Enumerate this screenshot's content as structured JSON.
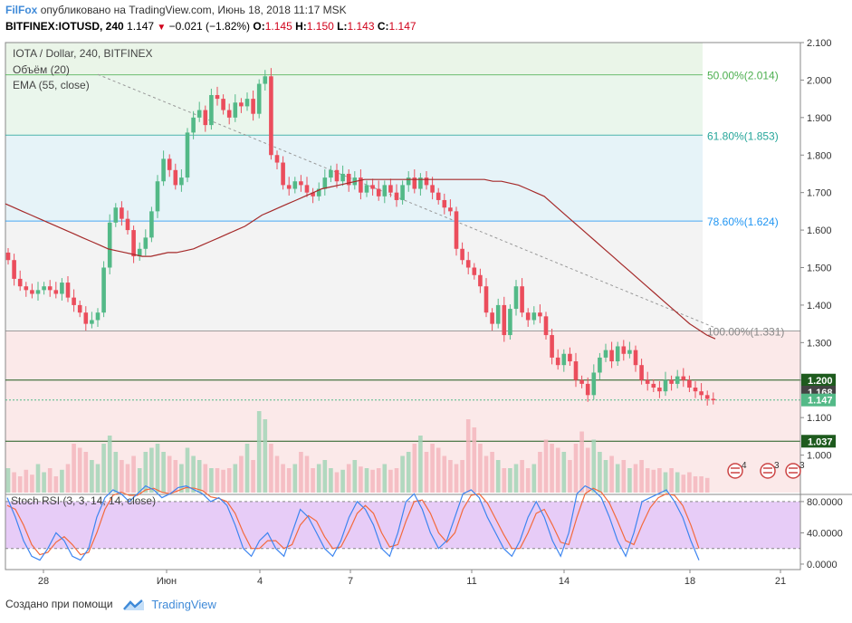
{
  "header": {
    "brand": "FilFox",
    "publish_text": "опубликовано на TradingView.com, Июнь 18, 2018 11:17 MSK",
    "symbol": "BITFINEX:IOTUSD, 240",
    "last": "1.147",
    "change": "−0.021 (−1.82%)",
    "o_label": "O:",
    "o": "1.145",
    "h_label": "H:",
    "h": "1.150",
    "l_label": "L:",
    "l": "1.143",
    "c_label": "C:",
    "c": "1.147"
  },
  "legend": {
    "title": "IOTA / Dollar, 240, BITFINEX",
    "volume": "Объём (20)",
    "ema": "EMA (55, close)",
    "rsi": "Stoch RSI (3, 3, 14, 14, close)"
  },
  "footer": {
    "created_with": "Создано при помощи",
    "brand": "TradingView"
  },
  "colors": {
    "up": "#53b987",
    "down": "#eb4d5c",
    "ema": "#a52a2a",
    "k": "#3d85f0",
    "d": "#f36a3d",
    "brand": "#3f8ad8"
  },
  "chart_data": {
    "type": "candlestick",
    "price_axis": {
      "min": 0.9,
      "max": 2.1,
      "ticks": [
        "2.100",
        "2.000",
        "1.900",
        "1.800",
        "1.700",
        "1.600",
        "1.500",
        "1.400",
        "1.300",
        "1.200",
        "1.100",
        "1.000"
      ]
    },
    "x_ticks": [
      "28",
      "Июн",
      "4",
      "7",
      "11",
      "14",
      "18",
      "21"
    ],
    "fib_levels": [
      {
        "label": "50.00%(2.014)",
        "value": 2.014,
        "color": "#4caf50"
      },
      {
        "label": "61.80%(1.853)",
        "value": 1.853,
        "color": "#26a69a"
      },
      {
        "label": "78.60%(1.624)",
        "value": 1.624,
        "color": "#2196f3"
      },
      {
        "label": "100.00%(1.331)",
        "value": 1.331,
        "color": "#888888"
      }
    ],
    "price_tags": [
      {
        "label": "1.200",
        "value": 1.2,
        "bg": "#1e5b1e"
      },
      {
        "label": "1.168",
        "value": 1.168,
        "bg": "#444444"
      },
      {
        "label": "1.147",
        "value": 1.147,
        "bg": "#53b987"
      },
      {
        "label": "1.037",
        "value": 1.037,
        "bg": "#1e5b1e"
      }
    ],
    "horizontal_lines": [
      1.2,
      1.037
    ],
    "closes": [
      1.52,
      1.47,
      1.45,
      1.44,
      1.43,
      1.44,
      1.45,
      1.44,
      1.43,
      1.46,
      1.42,
      1.4,
      1.38,
      1.35,
      1.36,
      1.38,
      1.5,
      1.62,
      1.66,
      1.63,
      1.6,
      1.53,
      1.55,
      1.58,
      1.65,
      1.73,
      1.79,
      1.76,
      1.72,
      1.74,
      1.86,
      1.9,
      1.92,
      1.88,
      1.96,
      1.95,
      1.92,
      1.9,
      1.94,
      1.93,
      1.95,
      1.91,
      1.99,
      2.01,
      1.8,
      1.78,
      1.72,
      1.71,
      1.73,
      1.72,
      1.7,
      1.69,
      1.71,
      1.74,
      1.76,
      1.73,
      1.75,
      1.72,
      1.74,
      1.7,
      1.72,
      1.71,
      1.69,
      1.72,
      1.7,
      1.68,
      1.72,
      1.74,
      1.71,
      1.74,
      1.72,
      1.7,
      1.68,
      1.66,
      1.65,
      1.55,
      1.52,
      1.5,
      1.48,
      1.45,
      1.38,
      1.35,
      1.4,
      1.32,
      1.39,
      1.45,
      1.38,
      1.36,
      1.38,
      1.37,
      1.32,
      1.26,
      1.24,
      1.27,
      1.25,
      1.2,
      1.19,
      1.16,
      1.22,
      1.26,
      1.28,
      1.25,
      1.29,
      1.27,
      1.28,
      1.24,
      1.2,
      1.19,
      1.18,
      1.17,
      1.2,
      1.19,
      1.21,
      1.2,
      1.18,
      1.17,
      1.16,
      1.15,
      1.147
    ],
    "ema55": [
      1.67,
      1.66,
      1.65,
      1.64,
      1.63,
      1.62,
      1.61,
      1.6,
      1.59,
      1.58,
      1.57,
      1.56,
      1.55,
      1.545,
      1.54,
      1.535,
      1.53,
      1.53,
      1.535,
      1.54,
      1.54,
      1.545,
      1.55,
      1.56,
      1.57,
      1.58,
      1.59,
      1.6,
      1.61,
      1.625,
      1.64,
      1.65,
      1.66,
      1.67,
      1.68,
      1.69,
      1.7,
      1.71,
      1.715,
      1.72,
      1.725,
      1.73,
      1.735,
      1.735,
      1.735,
      1.735,
      1.735,
      1.735,
      1.735,
      1.735,
      1.735,
      1.735,
      1.735,
      1.735,
      1.735,
      1.735,
      1.735,
      1.73,
      1.73,
      1.725,
      1.72,
      1.71,
      1.7,
      1.69,
      1.67,
      1.65,
      1.63,
      1.61,
      1.59,
      1.57,
      1.55,
      1.53,
      1.51,
      1.49,
      1.47,
      1.45,
      1.43,
      1.41,
      1.39,
      1.37,
      1.35,
      1.335,
      1.32,
      1.31
    ],
    "volume": [
      0.3,
      0.25,
      0.2,
      0.28,
      0.22,
      0.35,
      0.25,
      0.3,
      0.2,
      0.28,
      0.35,
      0.6,
      0.55,
      0.5,
      0.4,
      0.35,
      0.6,
      0.7,
      0.5,
      0.4,
      0.35,
      0.45,
      0.3,
      0.5,
      0.55,
      0.6,
      0.5,
      0.45,
      0.4,
      0.35,
      0.55,
      0.45,
      0.4,
      0.35,
      0.3,
      0.3,
      0.28,
      0.3,
      0.35,
      0.45,
      0.6,
      0.4,
      1.0,
      0.9,
      0.6,
      0.45,
      0.35,
      0.3,
      0.35,
      0.5,
      0.45,
      0.3,
      0.35,
      0.4,
      0.3,
      0.25,
      0.28,
      0.35,
      0.4,
      0.32,
      0.3,
      0.28,
      0.3,
      0.35,
      0.28,
      0.3,
      0.45,
      0.5,
      0.6,
      0.7,
      0.5,
      0.6,
      0.55,
      0.45,
      0.4,
      0.35,
      0.4,
      0.9,
      0.8,
      0.6,
      0.45,
      0.5,
      0.4,
      0.3,
      0.3,
      0.35,
      0.4,
      0.3,
      0.35,
      0.5,
      0.65,
      0.6,
      0.55,
      0.5,
      0.4,
      0.6,
      0.75,
      0.55,
      0.65,
      0.5,
      0.4,
      0.45,
      0.35,
      0.4,
      0.3,
      0.35,
      0.4,
      0.3,
      0.28,
      0.3,
      0.25,
      0.3,
      0.25,
      0.22,
      0.25,
      0.2,
      0.2,
      0.18
    ],
    "stoch_rsi": {
      "y_ticks": [
        "80.0000",
        "40.0000",
        "0.0000"
      ],
      "bands": [
        80,
        20
      ],
      "k": [
        85,
        60,
        30,
        10,
        5,
        20,
        40,
        30,
        10,
        5,
        20,
        60,
        85,
        95,
        90,
        80,
        90,
        100,
        95,
        85,
        90,
        98,
        100,
        95,
        90,
        80,
        85,
        75,
        50,
        20,
        10,
        30,
        40,
        20,
        10,
        40,
        70,
        60,
        40,
        20,
        10,
        30,
        60,
        80,
        70,
        50,
        20,
        10,
        40,
        80,
        90,
        70,
        40,
        20,
        30,
        60,
        90,
        95,
        85,
        60,
        40,
        20,
        10,
        30,
        60,
        80,
        60,
        30,
        10,
        40,
        90,
        100,
        95,
        85,
        60,
        30,
        10,
        40,
        80,
        85,
        90,
        95,
        80,
        60,
        30,
        5
      ],
      "d": [
        75,
        70,
        50,
        25,
        12,
        15,
        28,
        35,
        25,
        12,
        15,
        40,
        70,
        88,
        92,
        88,
        88,
        95,
        97,
        92,
        90,
        94,
        98,
        97,
        94,
        86,
        84,
        80,
        65,
        40,
        20,
        20,
        30,
        30,
        20,
        25,
        50,
        62,
        55,
        35,
        20,
        22,
        42,
        65,
        75,
        65,
        40,
        22,
        25,
        55,
        80,
        82,
        65,
        40,
        28,
        40,
        70,
        88,
        90,
        78,
        58,
        38,
        20,
        20,
        40,
        65,
        70,
        50,
        28,
        25,
        60,
        90,
        97,
        92,
        78,
        55,
        30,
        25,
        50,
        72,
        85,
        90,
        88,
        75,
        50,
        20
      ]
    },
    "event_markers": [
      "4",
      "3",
      "3"
    ]
  }
}
